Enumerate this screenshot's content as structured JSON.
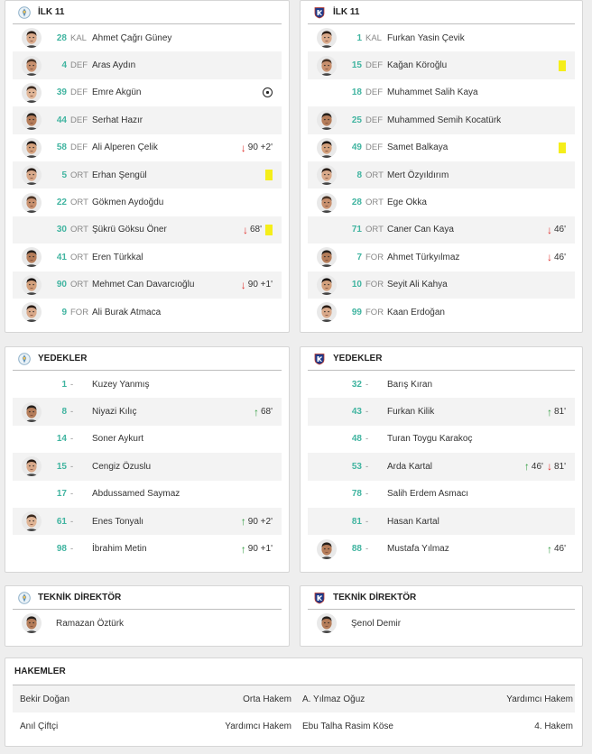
{
  "home_lineup": {
    "title": "İLK 11",
    "players": [
      {
        "number": "28",
        "pos": "KAL",
        "name": "Ahmet Çağrı Güney",
        "avatar": true,
        "events": []
      },
      {
        "number": "4",
        "pos": "DEF",
        "name": "Aras Aydın",
        "avatar": true,
        "events": []
      },
      {
        "number": "39",
        "pos": "DEF",
        "name": "Emre Akgün",
        "avatar": true,
        "events": [
          {
            "type": "goal"
          }
        ]
      },
      {
        "number": "44",
        "pos": "DEF",
        "name": "Serhat Hazır",
        "avatar": true,
        "events": []
      },
      {
        "number": "58",
        "pos": "DEF",
        "name": "Ali Alperen Çelik",
        "avatar": true,
        "events": [
          {
            "type": "sub_out",
            "text": "90 +2'"
          }
        ]
      },
      {
        "number": "5",
        "pos": "ORT",
        "name": "Erhan Şengül",
        "avatar": true,
        "events": [
          {
            "type": "yellow"
          }
        ]
      },
      {
        "number": "22",
        "pos": "ORT",
        "name": "Gökmen Aydoğdu",
        "avatar": true,
        "events": []
      },
      {
        "number": "30",
        "pos": "ORT",
        "name": "Şükrü Göksu Öner",
        "avatar": false,
        "events": [
          {
            "type": "sub_out",
            "text": "68'"
          },
          {
            "type": "yellow"
          }
        ]
      },
      {
        "number": "41",
        "pos": "ORT",
        "name": "Eren Türkkal",
        "avatar": true,
        "events": []
      },
      {
        "number": "90",
        "pos": "ORT",
        "name": "Mehmet Can Davarcıoğlu",
        "avatar": true,
        "events": [
          {
            "type": "sub_out",
            "text": "90 +1'"
          }
        ]
      },
      {
        "number": "9",
        "pos": "FOR",
        "name": "Ali Burak Atmaca",
        "avatar": true,
        "events": []
      }
    ]
  },
  "away_lineup": {
    "title": "İLK 11",
    "players": [
      {
        "number": "1",
        "pos": "KAL",
        "name": "Furkan Yasin Çevik",
        "avatar": true,
        "events": []
      },
      {
        "number": "15",
        "pos": "DEF",
        "name": "Kağan Köroğlu",
        "avatar": true,
        "events": [
          {
            "type": "yellow"
          }
        ]
      },
      {
        "number": "18",
        "pos": "DEF",
        "name": "Muhammet Salih Kaya",
        "avatar": false,
        "events": []
      },
      {
        "number": "25",
        "pos": "DEF",
        "name": "Muhammed Semih Kocatürk",
        "avatar": true,
        "events": []
      },
      {
        "number": "49",
        "pos": "DEF",
        "name": "Samet Balkaya",
        "avatar": true,
        "events": [
          {
            "type": "yellow"
          }
        ]
      },
      {
        "number": "8",
        "pos": "ORT",
        "name": "Mert Özyıldırım",
        "avatar": true,
        "events": []
      },
      {
        "number": "28",
        "pos": "ORT",
        "name": "Ege Okka",
        "avatar": true,
        "events": []
      },
      {
        "number": "71",
        "pos": "ORT",
        "name": "Caner Can Kaya",
        "avatar": false,
        "events": [
          {
            "type": "sub_out",
            "text": "46'"
          }
        ]
      },
      {
        "number": "7",
        "pos": "FOR",
        "name": "Ahmet Türkyılmaz",
        "avatar": true,
        "events": [
          {
            "type": "sub_out",
            "text": "46'"
          }
        ]
      },
      {
        "number": "10",
        "pos": "FOR",
        "name": "Seyit Ali Kahya",
        "avatar": true,
        "events": []
      },
      {
        "number": "99",
        "pos": "FOR",
        "name": "Kaan Erdoğan",
        "avatar": true,
        "events": []
      }
    ]
  },
  "home_subs": {
    "title": "YEDEKLER",
    "players": [
      {
        "number": "1",
        "pos": "-",
        "name": "Kuzey Yanmış",
        "avatar": false,
        "events": []
      },
      {
        "number": "8",
        "pos": "-",
        "name": "Niyazi Kılıç",
        "avatar": true,
        "events": [
          {
            "type": "sub_in",
            "text": "68'"
          }
        ]
      },
      {
        "number": "14",
        "pos": "-",
        "name": "Soner Aykurt",
        "avatar": false,
        "events": []
      },
      {
        "number": "15",
        "pos": "-",
        "name": "Cengiz Özuslu",
        "avatar": true,
        "events": []
      },
      {
        "number": "17",
        "pos": "-",
        "name": "Abdussamed Saymaz",
        "avatar": false,
        "events": []
      },
      {
        "number": "61",
        "pos": "-",
        "name": "Enes Tonyalı",
        "avatar": true,
        "events": [
          {
            "type": "sub_in",
            "text": "90 +2'"
          }
        ]
      },
      {
        "number": "98",
        "pos": "-",
        "name": "İbrahim Metin",
        "avatar": false,
        "events": [
          {
            "type": "sub_in",
            "text": "90 +1'"
          }
        ]
      }
    ]
  },
  "away_subs": {
    "title": "YEDEKLER",
    "players": [
      {
        "number": "32",
        "pos": "-",
        "name": "Barış Kıran",
        "avatar": false,
        "events": []
      },
      {
        "number": "43",
        "pos": "-",
        "name": "Furkan Kilik",
        "avatar": false,
        "events": [
          {
            "type": "sub_in",
            "text": "81'"
          }
        ]
      },
      {
        "number": "48",
        "pos": "-",
        "name": "Turan Toygu Karakoç",
        "avatar": false,
        "events": []
      },
      {
        "number": "53",
        "pos": "-",
        "name": "Arda Kartal",
        "avatar": false,
        "events": [
          {
            "type": "sub_in",
            "text": "46'"
          },
          {
            "type": "sub_out",
            "text": "81'"
          }
        ]
      },
      {
        "number": "78",
        "pos": "-",
        "name": "Salih Erdem Asmacı",
        "avatar": false,
        "events": []
      },
      {
        "number": "81",
        "pos": "-",
        "name": "Hasan Kartal",
        "avatar": false,
        "events": []
      },
      {
        "number": "88",
        "pos": "-",
        "name": "Mustafa Yılmaz",
        "avatar": true,
        "events": [
          {
            "type": "sub_in",
            "text": "46'"
          }
        ]
      }
    ]
  },
  "home_coach": {
    "title": "TEKNİK DİREKTÖR",
    "name": "Ramazan Öztürk"
  },
  "away_coach": {
    "title": "TEKNİK DİREKTÖR",
    "name": "Şenol Demir"
  },
  "referees": {
    "title": "HAKEMLER",
    "rows": [
      [
        {
          "name": "Bekir Doğan",
          "role": "Orta Hakem"
        },
        {
          "name": "A. Yılmaz Oğuz",
          "role": "Yardımcı Hakem"
        }
      ],
      [
        {
          "name": "Anıl Çiftçi",
          "role": "Yardımcı Hakem"
        },
        {
          "name": "Ebu Talha Rasim Köse",
          "role": "4. Hakem"
        }
      ]
    ]
  },
  "colors": {
    "number": "#40b4a0",
    "sub_in": "#2f9c3e",
    "sub_out": "#e0322e",
    "yellow": "#f5ee1a"
  },
  "icons": {
    "home_crest": "home-team-crest-icon",
    "away_crest": "away-team-crest-icon",
    "goal": "soccer-ball-icon",
    "sub_in": "arrow-up-icon",
    "sub_out": "arrow-down-icon",
    "yellow": "yellow-card-icon"
  }
}
